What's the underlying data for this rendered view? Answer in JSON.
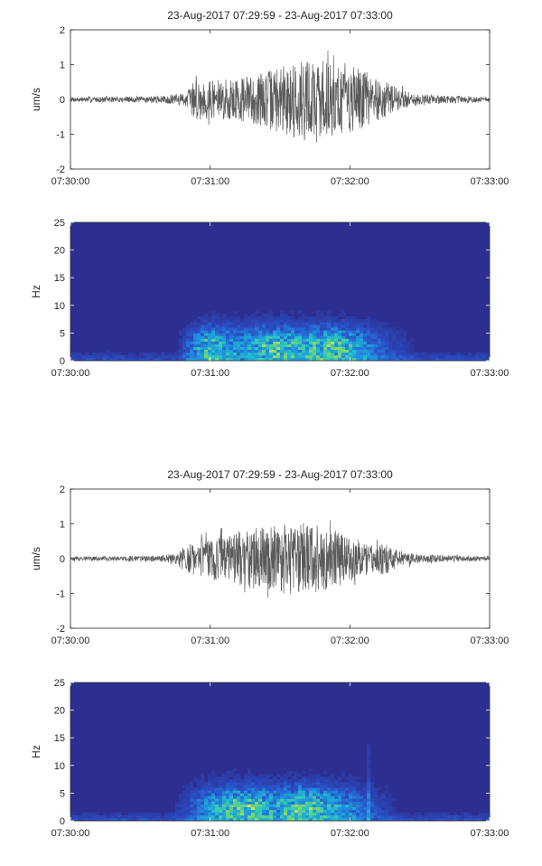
{
  "chart_data": [
    {
      "type": "line",
      "panel": "event-1-waveform",
      "title": "23-Aug-2017 07:29:59 - 23-Aug-2017 07:33:00",
      "xlabel": "",
      "ylabel": "um/s",
      "xlim": [
        "07:30:00",
        "07:33:00"
      ],
      "ylim": [
        -2,
        2
      ],
      "xticks": [
        "07:30:00",
        "07:31:00",
        "07:32:00",
        "07:33:00"
      ],
      "yticks": [
        "-2",
        "-1",
        "0",
        "1",
        "2"
      ],
      "color": "#5a5a5a",
      "envelope": {
        "x_seconds": [
          0,
          20,
          40,
          50,
          52,
          55,
          60,
          70,
          80,
          90,
          100,
          110,
          120,
          130,
          140,
          150,
          160,
          170,
          180
        ],
        "amplitude_um_s": [
          0.07,
          0.08,
          0.1,
          0.2,
          0.5,
          0.6,
          0.55,
          0.6,
          0.75,
          0.95,
          1.2,
          1.1,
          1.0,
          0.7,
          0.35,
          0.15,
          0.12,
          0.1,
          0.08
        ]
      },
      "peak_max": 1.4,
      "peak_min": -1.35
    },
    {
      "type": "heatmap",
      "panel": "event-1-spectrogram",
      "title": "",
      "xlabel": "",
      "ylabel": "Hz",
      "xlim": [
        "07:30:00",
        "07:33:00"
      ],
      "ylim": [
        0,
        25
      ],
      "xticks": [
        "07:30:00",
        "07:31:00",
        "07:32:00",
        "07:33:00"
      ],
      "yticks": [
        "0",
        "5",
        "10",
        "15",
        "20",
        "25"
      ],
      "colormap": [
        "#2c2f8f",
        "#2b4fc7",
        "#1f8fe0",
        "#23c3c9",
        "#7fd66a",
        "#f0e93a"
      ],
      "energy_band_hz": [
        0,
        10
      ],
      "energy_peak_hz": 2.5,
      "energy_peak_times": [
        "07:30:55",
        "07:31:30",
        "07:31:50"
      ]
    },
    {
      "type": "line",
      "panel": "event-2-waveform",
      "title": "23-Aug-2017 07:29:59 - 23-Aug-2017 07:33:00",
      "xlabel": "",
      "ylabel": "um/s",
      "xlim": [
        "07:30:00",
        "07:33:00"
      ],
      "ylim": [
        -2,
        2
      ],
      "xticks": [
        "07:30:00",
        "07:31:00",
        "07:32:00",
        "07:33:00"
      ],
      "yticks": [
        "-2",
        "-1",
        "0",
        "1",
        "2"
      ],
      "color": "#5a5a5a",
      "envelope": {
        "x_seconds": [
          0,
          20,
          40,
          45,
          50,
          60,
          70,
          80,
          90,
          100,
          110,
          120,
          130,
          135,
          140,
          150,
          160,
          170,
          180
        ],
        "amplitude_um_s": [
          0.06,
          0.07,
          0.1,
          0.2,
          0.4,
          0.6,
          0.75,
          0.9,
          1.0,
          1.05,
          0.9,
          0.65,
          0.4,
          0.5,
          0.25,
          0.12,
          0.1,
          0.08,
          0.07
        ]
      },
      "peak_max": 1.1,
      "peak_min": -1.25
    },
    {
      "type": "heatmap",
      "panel": "event-2-spectrogram",
      "title": "",
      "xlabel": "",
      "ylabel": "Hz",
      "xlim": [
        "07:30:00",
        "07:33:00"
      ],
      "ylim": [
        0,
        25
      ],
      "xticks": [
        "07:30:00",
        "07:31:00",
        "07:32:00",
        "07:33:00"
      ],
      "yticks": [
        "0",
        "5",
        "10",
        "15",
        "20",
        "25"
      ],
      "colormap": [
        "#2c2f8f",
        "#2b4fc7",
        "#1f8fe0",
        "#23c3c9",
        "#7fd66a",
        "#f0e93a"
      ],
      "energy_band_hz": [
        0,
        12
      ],
      "energy_peak_hz": 2.5,
      "energy_peak_times": [
        "07:31:15",
        "07:31:40"
      ]
    }
  ]
}
